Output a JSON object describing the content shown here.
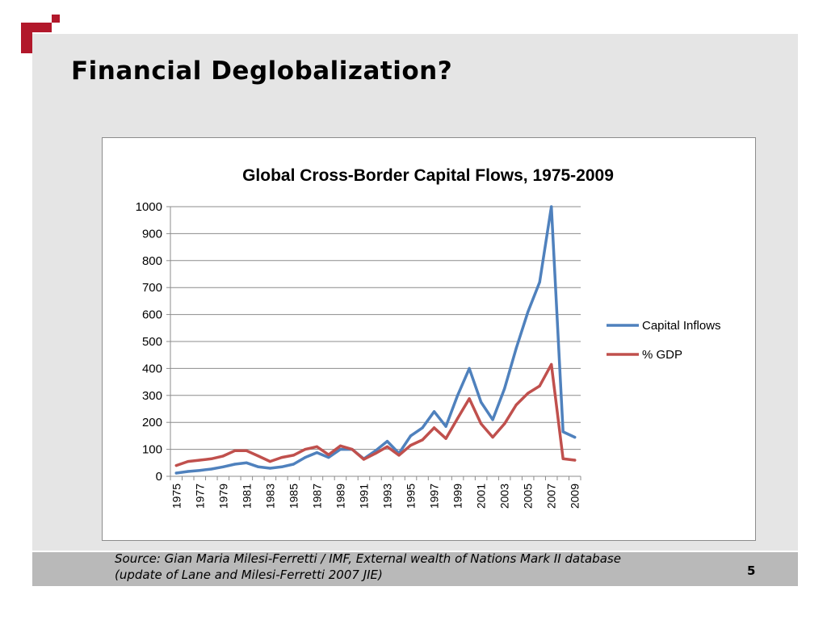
{
  "slide": {
    "title": "Financial Deglobalization?",
    "source": "Source: Gian Maria Milesi-Ferretti / IMF, External wealth of Nations Mark II database (update of Lane and Milesi-Ferretti 2007 JIE)",
    "page_number": "5",
    "logo_icon": "logo-icon",
    "colors": {
      "logo": "#b2182b",
      "background": "#e5e5e5",
      "footer": "#b9b9b9"
    }
  },
  "chart_data": {
    "type": "line",
    "title": "Global Cross-Border Capital Flows, 1975-2009",
    "xlabel": "",
    "ylabel": "",
    "ylim": [
      0,
      1000
    ],
    "yticks": [
      0,
      100,
      200,
      300,
      400,
      500,
      600,
      700,
      800,
      900,
      1000
    ],
    "x": [
      1975,
      1976,
      1977,
      1978,
      1979,
      1980,
      1981,
      1982,
      1983,
      1984,
      1985,
      1986,
      1987,
      1988,
      1989,
      1990,
      1991,
      1992,
      1993,
      1994,
      1995,
      1996,
      1997,
      1998,
      1999,
      2000,
      2001,
      2002,
      2003,
      2004,
      2005,
      2006,
      2007,
      2008,
      2009
    ],
    "xtick_labels": [
      "1975",
      "1977",
      "1979",
      "1981",
      "1983",
      "1985",
      "1987",
      "1989",
      "1991",
      "1993",
      "1995",
      "1997",
      "1999",
      "2001",
      "2003",
      "2005",
      "2007",
      "2009"
    ],
    "grid": true,
    "legend_position": "right",
    "series": [
      {
        "name": "Capital Inflows",
        "color": "#4f81bd",
        "values": [
          12,
          18,
          22,
          27,
          35,
          45,
          50,
          35,
          30,
          35,
          45,
          70,
          88,
          70,
          100,
          100,
          65,
          95,
          130,
          85,
          150,
          180,
          240,
          185,
          300,
          400,
          275,
          210,
          325,
          475,
          610,
          720,
          1000,
          165,
          145
        ]
      },
      {
        "name": "% GDP",
        "color": "#c0504d",
        "values": [
          40,
          55,
          60,
          65,
          75,
          95,
          95,
          75,
          55,
          70,
          78,
          100,
          110,
          80,
          113,
          100,
          63,
          85,
          110,
          78,
          115,
          135,
          180,
          140,
          215,
          288,
          195,
          145,
          195,
          265,
          308,
          335,
          415,
          65,
          60
        ]
      }
    ]
  }
}
